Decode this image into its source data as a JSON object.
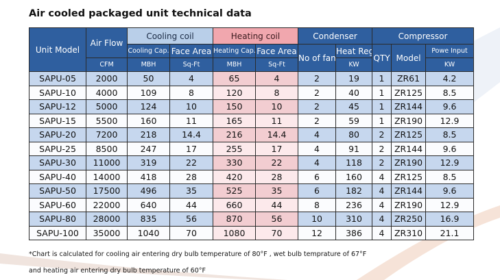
{
  "title": "Air cooled packaged unit technical data",
  "table": {
    "header": {
      "unit_model": "Unit Model",
      "air_flow": "Air Flow",
      "air_flow_unit": "CFM",
      "cooling_coil": "Cooling coil",
      "cooling_cap": "Cooling Cap.",
      "cooling_cap_unit": "MBH",
      "cooling_face": "Face Area",
      "cooling_face_unit": "Sq-Ft",
      "heating_coil": "Heating coil",
      "heating_cap": "Heating Cap.",
      "heating_cap_unit": "MBH",
      "heating_face": "Face Area",
      "heating_face_unit": "Sq-Ft",
      "condenser": "Condenser",
      "no_of_fan": "No of fan",
      "heat_reg": "Heat Reg.",
      "heat_reg_unit": "KW",
      "compressor": "Compressor",
      "qty": "QTY",
      "model": "Model",
      "power_input": "Powe Input",
      "power_input_unit": "KW"
    },
    "rows": [
      [
        "SAPU-05",
        2000,
        50,
        4,
        65,
        4,
        2,
        19,
        1,
        "ZR61",
        4.2
      ],
      [
        "SAPU-10",
        4000,
        109,
        8,
        120,
        8,
        2,
        40,
        1,
        "ZR125",
        8.5
      ],
      [
        "SAPU-12",
        5000,
        124,
        10,
        150,
        10,
        2,
        45,
        1,
        "ZR144",
        9.6
      ],
      [
        "SAPU-15",
        5500,
        160,
        11,
        165,
        11,
        2,
        59,
        1,
        "ZR190",
        12.9
      ],
      [
        "SAPU-20",
        7200,
        218,
        14.4,
        216,
        14.4,
        4,
        80,
        2,
        "ZR125",
        8.5
      ],
      [
        "SAPU-25",
        8500,
        247,
        17,
        255,
        17,
        4,
        91,
        2,
        "ZR144",
        9.6
      ],
      [
        "SAPU-30",
        11000,
        319,
        22,
        330,
        22,
        4,
        118,
        2,
        "ZR190",
        12.9
      ],
      [
        "SAPU-40",
        14000,
        418,
        28,
        420,
        28,
        6,
        160,
        4,
        "ZR125",
        8.5
      ],
      [
        "SAPU-50",
        17500,
        496,
        35,
        525,
        35,
        6,
        182,
        4,
        "ZR144",
        9.6
      ],
      [
        "SAPU-60",
        22000,
        640,
        44,
        660,
        44,
        8,
        236,
        4,
        "ZR190",
        12.9
      ],
      [
        "SAPU-80",
        28000,
        835,
        56,
        870,
        56,
        10,
        310,
        4,
        "ZR250",
        16.9
      ],
      [
        "SAPU-100",
        35000,
        1040,
        70,
        1080,
        70,
        12,
        386,
        4,
        "ZR310",
        21.1
      ]
    ]
  },
  "notes": [
    "*Chart is calculated for cooling air entering dry bulb temperature of 80°F , wet bulb temprature of 67°F",
    "and heating air entering dry bulb temperature of 60°F"
  ]
}
